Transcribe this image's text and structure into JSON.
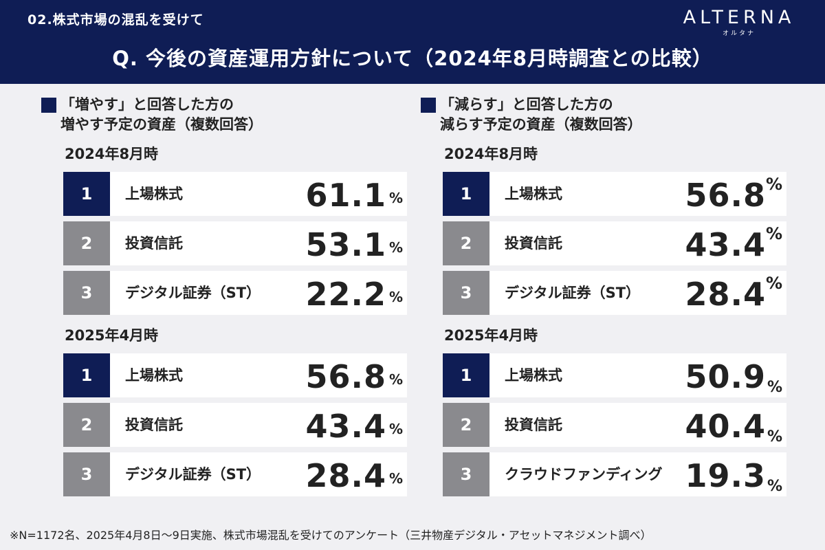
{
  "header": {
    "section": "02.株式市場の混乱を受けて",
    "title": "Q. 今後の資産運用方針について（2024年8月時調査との比較）",
    "logo_main": "ALTERNA",
    "logo_sub": "オルタナ"
  },
  "left": {
    "heading_line1": "「増やす」と回答した方の",
    "heading_line2": "増やす予定の資産（複数回答）",
    "period1": "2024年8月時",
    "items1": [
      {
        "rank": "1",
        "label": "上場株式",
        "value": "61.1",
        "unit": "%"
      },
      {
        "rank": "2",
        "label": "投資信託",
        "value": "53.1",
        "unit": "%"
      },
      {
        "rank": "3",
        "label": "デジタル証券（ST）",
        "value": "22.2",
        "unit": "%"
      }
    ],
    "period2": "2025年4月時",
    "items2": [
      {
        "rank": "1",
        "label": "上場株式",
        "value": "56.8",
        "unit": "%"
      },
      {
        "rank": "2",
        "label": "投資信託",
        "value": "43.4",
        "unit": "%"
      },
      {
        "rank": "3",
        "label": "デジタル証券（ST）",
        "value": "28.4",
        "unit": "%"
      }
    ]
  },
  "right": {
    "heading_line1": "「減らす」と回答した方の",
    "heading_line2": "減らす予定の資産（複数回答）",
    "period1": "2024年8月時",
    "items1": [
      {
        "rank": "1",
        "label": "上場株式",
        "value": "56.8",
        "unit": "%"
      },
      {
        "rank": "2",
        "label": "投資信託",
        "value": "43.4",
        "unit": "%"
      },
      {
        "rank": "3",
        "label": "デジタル証券（ST）",
        "value": "28.4",
        "unit": "%"
      }
    ],
    "period2": "2025年4月時",
    "items2": [
      {
        "rank": "1",
        "label": "上場株式",
        "value": "50.9",
        "unit": "%"
      },
      {
        "rank": "2",
        "label": "投資信託",
        "value": "40.4",
        "unit": "%"
      },
      {
        "rank": "3",
        "label": "クラウドファンディング",
        "value": "19.3",
        "unit": "%"
      }
    ]
  },
  "footnote": "※N=1172名、2025年4月8日〜9日実施、株式市場混乱を受けてのアンケート（三井物産デジタル・アセットマネジメント調べ）",
  "colors": {
    "navy": "#0f1d55",
    "gray_rank": "#8a8a8e",
    "background": "#f0f0f3"
  }
}
